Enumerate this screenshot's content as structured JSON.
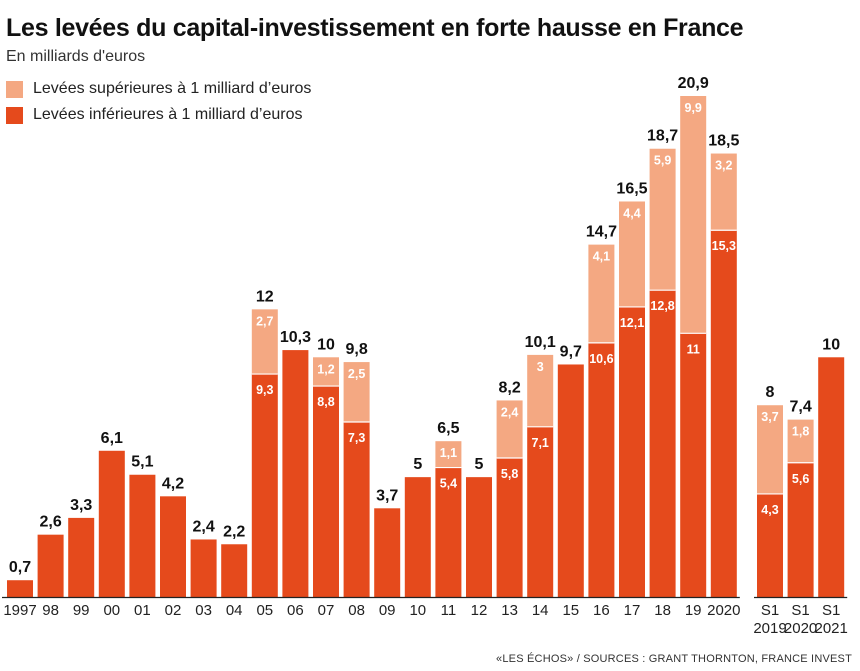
{
  "title": "Les levées du capital-investissement en forte hausse en France",
  "subtitle": "En milliards d'euros",
  "source": "«LES ÉCHOS» / SOURCES : GRANT THORNTON, FRANCE INVEST",
  "colors": {
    "upper": "#f4a882",
    "lower": "#e54a1c",
    "text": "#111111",
    "segment_label": "#ffffff"
  },
  "chart_data": {
    "type": "bar",
    "stacked": true,
    "categories": [
      "1997",
      "98",
      "99",
      "00",
      "01",
      "02",
      "03",
      "04",
      "05",
      "06",
      "07",
      "08",
      "09",
      "10",
      "11",
      "12",
      "13",
      "14",
      "15",
      "16",
      "17",
      "18",
      "19",
      "2020",
      "S1 2019",
      "S1 2020",
      "S1 2021"
    ],
    "series": [
      {
        "name": "Levées inférieures à 1 milliard d’euros",
        "values": [
          0.7,
          2.6,
          3.3,
          6.1,
          5.1,
          4.2,
          2.4,
          2.2,
          9.3,
          10.3,
          8.8,
          7.3,
          3.7,
          5,
          5.4,
          5,
          5.8,
          7.1,
          9.7,
          10.6,
          12.1,
          12.8,
          11,
          15.3,
          4.3,
          5.6,
          10
        ]
      },
      {
        "name": "Levées supérieures à 1 milliard d’euros",
        "values": [
          0,
          0,
          0,
          0,
          0,
          0,
          0,
          0,
          2.7,
          0,
          1.2,
          2.5,
          0,
          0,
          1.1,
          0,
          2.4,
          3,
          0,
          4.1,
          4.4,
          5.9,
          9.9,
          3.2,
          3.7,
          1.8,
          0
        ]
      }
    ],
    "lower_labels": [
      "",
      "",
      "",
      "",
      "",
      "",
      "",
      "",
      "9,3",
      "",
      "8,8",
      "7,3",
      "",
      "",
      "5,4",
      "",
      "5,8",
      "7,1",
      "",
      "10,6",
      "12,1",
      "12,8",
      "11",
      "15,3",
      "4,3",
      "5,6",
      ""
    ],
    "upper_labels": [
      "",
      "",
      "",
      "",
      "",
      "",
      "",
      "",
      "2,7",
      "",
      "1,2",
      "2,5",
      "",
      "",
      "1,1",
      "",
      "2,4",
      "3",
      "",
      "4,1",
      "4,4",
      "5,9",
      "9,9",
      "3,2",
      "3,7",
      "1,8",
      ""
    ],
    "totals": [
      "0,7",
      "2,6",
      "3,3",
      "6,1",
      "5,1",
      "4,2",
      "2,4",
      "2,2",
      "12",
      "10,3",
      "10",
      "9,8",
      "3,7",
      "5",
      "6,5",
      "5",
      "8,2",
      "10,1",
      "9,7",
      "14,7",
      "16,5",
      "18,7",
      "20,9",
      "18,5",
      "8",
      "7,4",
      "10"
    ],
    "tick_labels": [
      [
        "1997"
      ],
      [
        "98"
      ],
      [
        "99"
      ],
      [
        "00"
      ],
      [
        "01"
      ],
      [
        "02"
      ],
      [
        "03"
      ],
      [
        "04"
      ],
      [
        "05"
      ],
      [
        "06"
      ],
      [
        "07"
      ],
      [
        "08"
      ],
      [
        "09"
      ],
      [
        "10"
      ],
      [
        "11"
      ],
      [
        "12"
      ],
      [
        "13"
      ],
      [
        "14"
      ],
      [
        "15"
      ],
      [
        "16"
      ],
      [
        "17"
      ],
      [
        "18"
      ],
      [
        "19"
      ],
      [
        "2020"
      ],
      [
        "S1",
        "2019"
      ],
      [
        "S1",
        "2020"
      ],
      [
        "S1",
        "2021"
      ]
    ],
    "xlabel": "",
    "ylabel": "",
    "ylim": [
      0,
      20.9
    ],
    "grid": false,
    "legend_position": "top-left"
  }
}
